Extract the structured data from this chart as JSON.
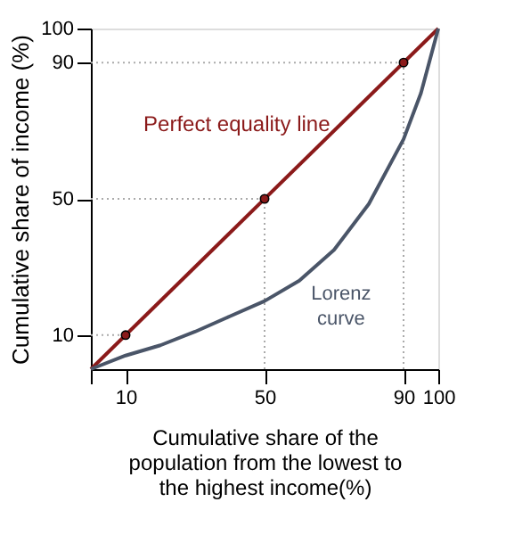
{
  "chart_data": {
    "type": "line",
    "xlabel": "Cumulative share of the population from the lowest to the highest income(%)",
    "ylabel": "Cumulative share of income (%)",
    "xlim": [
      0,
      100
    ],
    "ylim": [
      0,
      100
    ],
    "xticks": [
      {
        "value": 0,
        "label": null
      },
      10,
      50,
      90,
      100
    ],
    "yticks": [
      10,
      50,
      90,
      100
    ],
    "series": [
      {
        "name": "Perfect equality  line",
        "color": "#8b1a1a",
        "x": [
          0,
          100
        ],
        "values": [
          0,
          100
        ],
        "marker": "none"
      },
      {
        "color": "#8b1a1a",
        "type": "scatter",
        "x": [
          10,
          50,
          90
        ],
        "values": [
          10,
          50,
          90
        ],
        "marker": "circle"
      },
      {
        "name": "Lorenz curve",
        "color": "#4a5568",
        "x": [
          0,
          10,
          20,
          30,
          40,
          50,
          60,
          70,
          80,
          90,
          95,
          100
        ],
        "values": [
          0,
          4,
          7,
          11,
          15.5,
          20,
          26,
          35,
          48.5,
          67.5,
          81,
          100
        ],
        "marker": "none"
      }
    ],
    "ref_lines": [
      {
        "axis": "y",
        "value": 10,
        "color": "#aaaaaa",
        "line_style": "dotted"
      },
      {
        "axis": "y",
        "value": 50,
        "color": "#aaaaaa",
        "line_style": "dotted"
      },
      {
        "axis": "y",
        "value": 90,
        "color": "#aaaaaa",
        "line_style": "dotted"
      },
      {
        "axis": "x",
        "value": 50,
        "color": "#aaaaaa",
        "line_style": "dotted"
      },
      {
        "axis": "x",
        "value": 90,
        "color": "#aaaaaa",
        "line_style": "dotted"
      }
    ],
    "grid": false
  }
}
